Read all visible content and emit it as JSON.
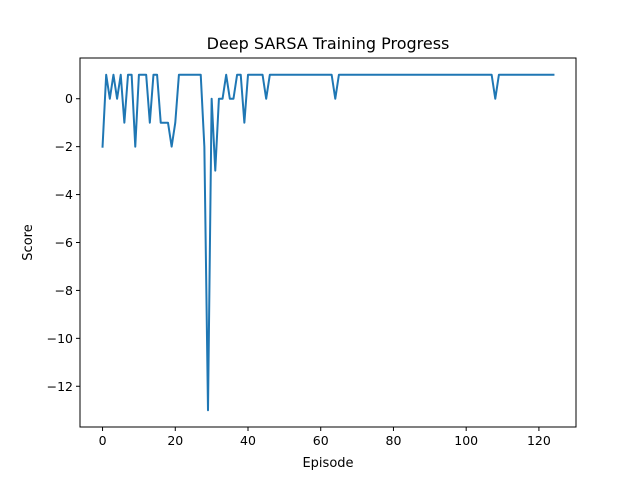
{
  "chart_data": {
    "type": "line",
    "title": "Deep SARSA Training Progress",
    "xlabel": "Episode",
    "ylabel": "Score",
    "xlim": [
      -6.2,
      130.2
    ],
    "ylim": [
      -13.7,
      1.7
    ],
    "xticks": [
      0,
      20,
      40,
      60,
      80,
      100,
      120
    ],
    "yticks": [
      -12,
      -10,
      -8,
      -6,
      -4,
      -2,
      0
    ],
    "grid": false,
    "legend": "none",
    "series": [
      {
        "color": "#1f77b4",
        "x": [
          0,
          1,
          2,
          3,
          4,
          5,
          6,
          7,
          8,
          9,
          10,
          11,
          12,
          13,
          14,
          15,
          16,
          17,
          18,
          19,
          20,
          21,
          22,
          23,
          24,
          25,
          26,
          27,
          28,
          29,
          30,
          31,
          32,
          33,
          34,
          35,
          36,
          37,
          38,
          39,
          40,
          41,
          42,
          43,
          44,
          45,
          46,
          47,
          48,
          49,
          50,
          51,
          52,
          53,
          54,
          55,
          56,
          57,
          58,
          59,
          60,
          61,
          62,
          63,
          64,
          65,
          66,
          67,
          68,
          69,
          70,
          71,
          72,
          73,
          74,
          75,
          76,
          77,
          78,
          79,
          80,
          81,
          82,
          83,
          84,
          85,
          86,
          87,
          88,
          89,
          90,
          91,
          92,
          93,
          94,
          95,
          96,
          97,
          98,
          99,
          100,
          101,
          102,
          103,
          104,
          105,
          106,
          107,
          108,
          109,
          110,
          111,
          112,
          113,
          114,
          115,
          116,
          117,
          118,
          119,
          120,
          121,
          122,
          123,
          124
        ],
        "y": [
          -2,
          1,
          0,
          1,
          0,
          1,
          -1,
          1,
          1,
          -2,
          1,
          1,
          1,
          -1,
          1,
          1,
          -1,
          -1,
          -1,
          -2,
          -1,
          1,
          1,
          1,
          1,
          1,
          1,
          1,
          -2,
          -13,
          0,
          -3,
          0,
          0,
          1,
          0,
          0,
          1,
          1,
          -1,
          1,
          1,
          1,
          1,
          1,
          0,
          1,
          1,
          1,
          1,
          1,
          1,
          1,
          1,
          1,
          1,
          1,
          1,
          1,
          1,
          1,
          1,
          1,
          1,
          0,
          1,
          1,
          1,
          1,
          1,
          1,
          1,
          1,
          1,
          1,
          1,
          1,
          1,
          1,
          1,
          1,
          1,
          1,
          1,
          1,
          1,
          1,
          1,
          1,
          1,
          1,
          1,
          1,
          1,
          1,
          1,
          1,
          1,
          1,
          1,
          1,
          1,
          1,
          1,
          1,
          1,
          1,
          1,
          0,
          1,
          1,
          1,
          1,
          1,
          1,
          1,
          1,
          1,
          1,
          1,
          1,
          1,
          1,
          1,
          1
        ]
      }
    ]
  }
}
